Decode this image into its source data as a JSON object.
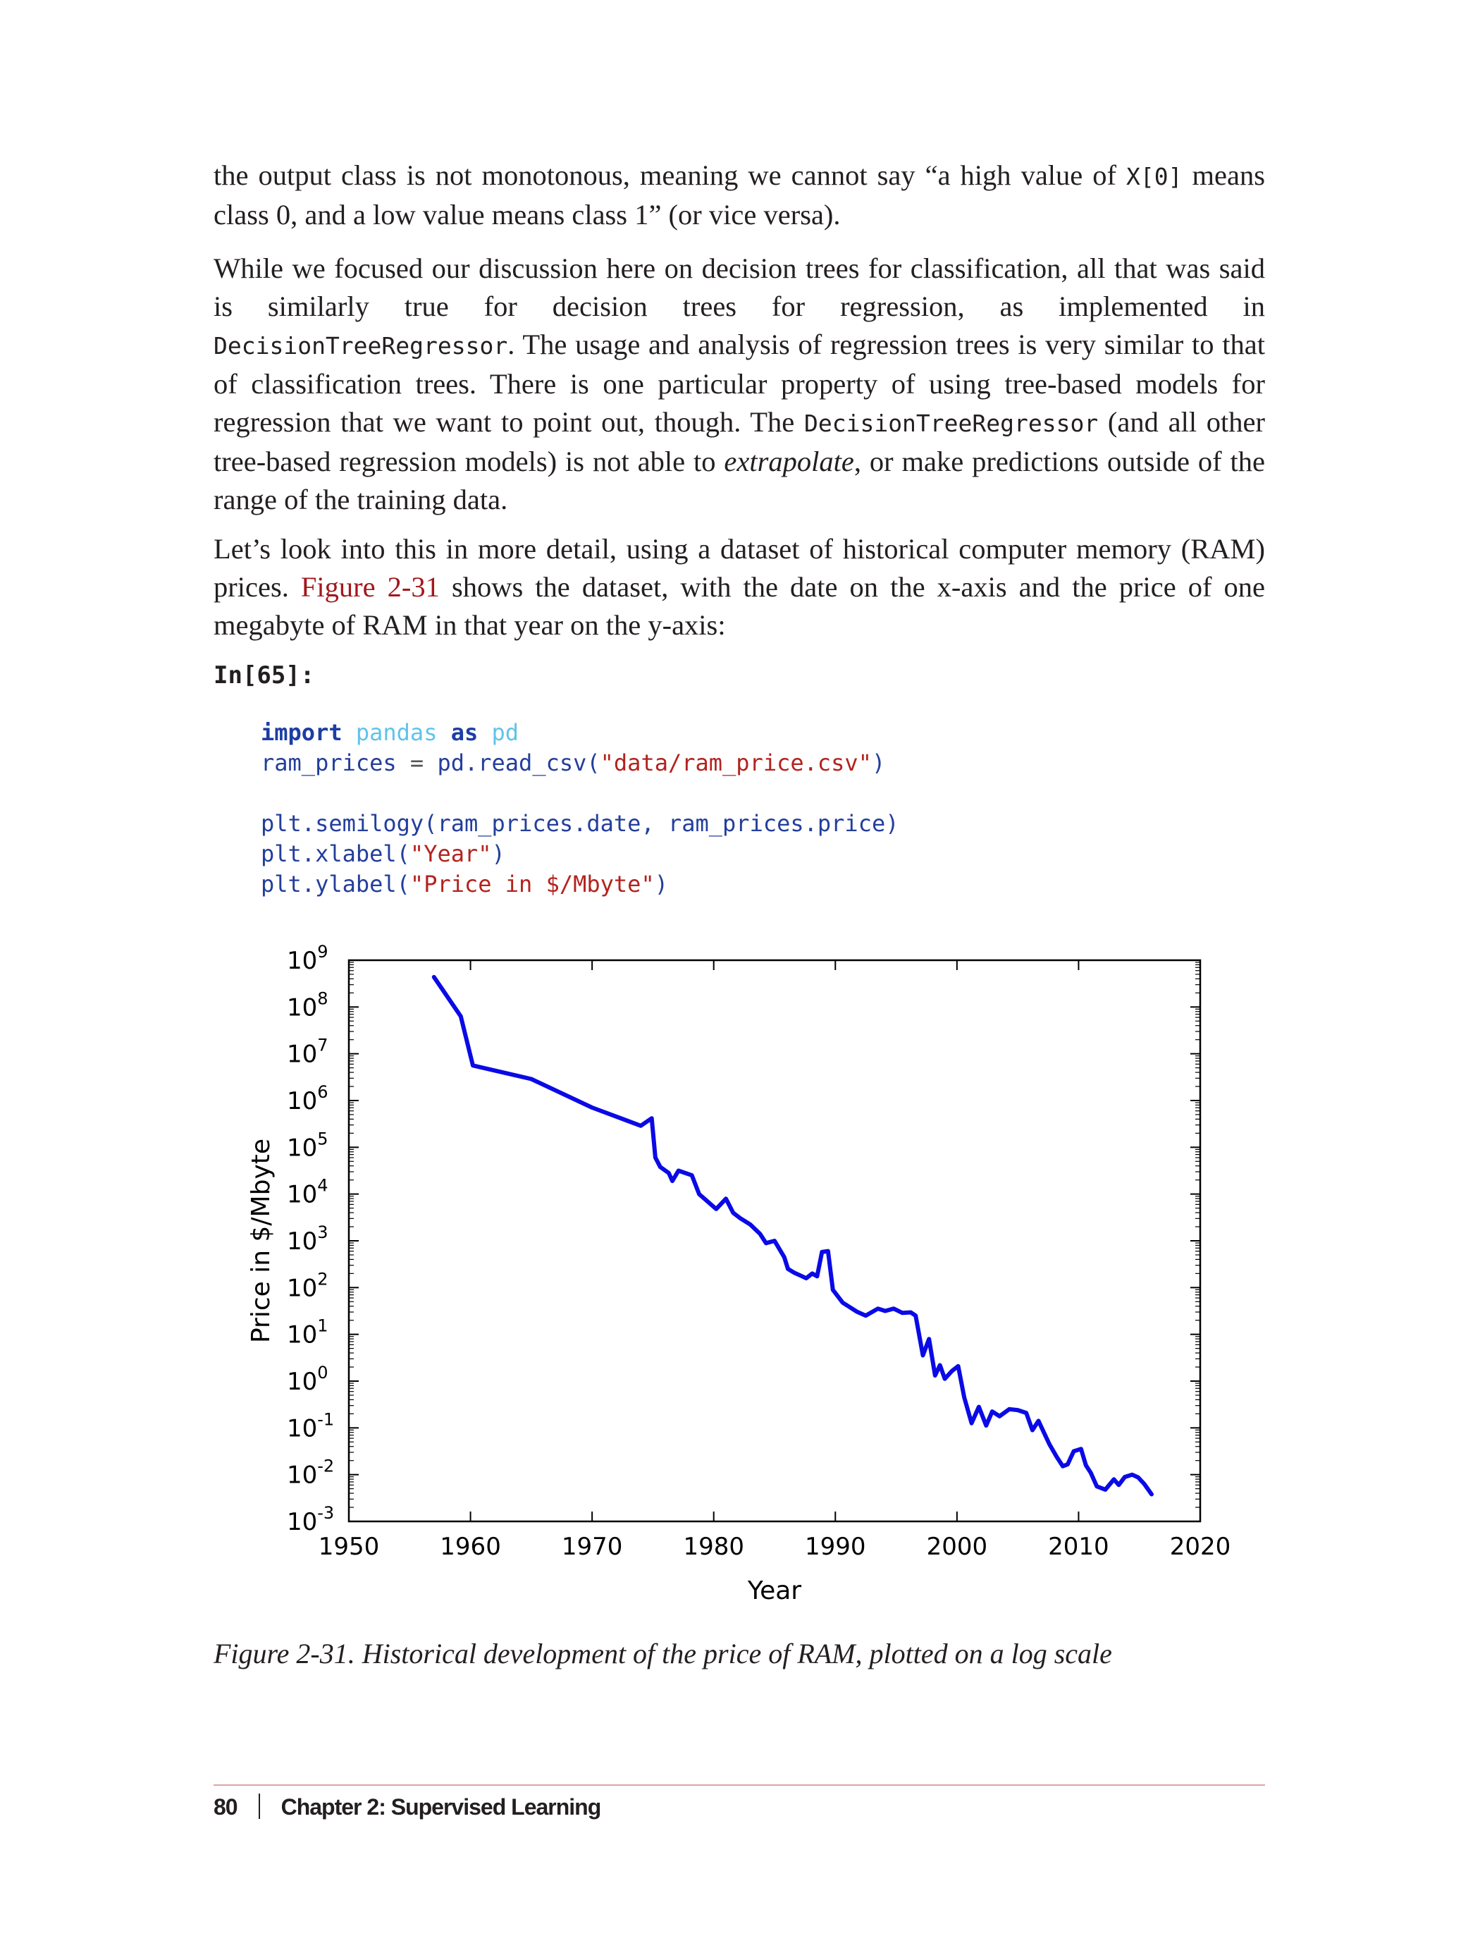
{
  "paragraphs": {
    "p1": {
      "a": "the output class is not monotonous, meaning we cannot say “a high value of ",
      "code": "X[0]",
      "b": " means class 0, and a low value means class 1” (or vice versa)."
    },
    "p2": {
      "a": "While we focused our discussion here on decision trees for classification, all that was said is similarly true for decision trees for regression, as implemented in ",
      "code1": "DecisionTreeRegressor",
      "b": ". The usage and analysis of regression trees is very similar to that of classification trees. There is one particular property of using tree-based models for regression that we want to point out, though. The ",
      "code2": "DecisionTreeRegressor",
      "c": " (and all other tree-based regression models) is not able to ",
      "em": "extrapolate",
      "d": ", or make predictions outside of the range of the training data."
    },
    "p3": {
      "a": "Let’s look into this in more detail, using a dataset of historical computer memory (RAM) prices. ",
      "ref": "Figure 2-31",
      "b": " shows the dataset, with the date on the x-axis and the price of one megabyte of RAM in that year on the y-axis:"
    }
  },
  "code_cell": {
    "label": "In[65]:",
    "l1_kw1": "import",
    "l1_mod1": "pandas",
    "l1_kw2": "as",
    "l1_mod2": "pd",
    "l2_a": "ram_prices",
    "l2_op": " = ",
    "l2_b": "pd.read_csv(",
    "l2_str": "\"data/ram_price.csv\"",
    "l2_c": ")",
    "l3": "plt.semilogy(ram_prices.date, ram_prices.price)",
    "l4_a": "plt.xlabel(",
    "l4_str": "\"Year\"",
    "l4_c": ")",
    "l5_a": "plt.ylabel(",
    "l5_str": "\"Price in $/Mbyte\"",
    "l5_c": ")"
  },
  "caption": "Figure 2-31. Historical development of the price of RAM, plotted on a log scale",
  "footer": {
    "page_number": "80",
    "chapter": "Chapter 2: Supervised Learning"
  },
  "chart_data": {
    "type": "line",
    "xlabel": "Year",
    "ylabel": "Price in $/Mbyte",
    "yscale": "log",
    "xlim": [
      1950,
      2020
    ],
    "ylim_exponents": [
      -3,
      9
    ],
    "xticks": [
      "1950",
      "1960",
      "1970",
      "1980",
      "1990",
      "2000",
      "2010",
      "2020"
    ],
    "yticks": [
      {
        "base": "10",
        "exp": "-3"
      },
      {
        "base": "10",
        "exp": "-2"
      },
      {
        "base": "10",
        "exp": "-1"
      },
      {
        "base": "10",
        "exp": "0"
      },
      {
        "base": "10",
        "exp": "1"
      },
      {
        "base": "10",
        "exp": "2"
      },
      {
        "base": "10",
        "exp": "3"
      },
      {
        "base": "10",
        "exp": "4"
      },
      {
        "base": "10",
        "exp": "5"
      },
      {
        "base": "10",
        "exp": "6"
      },
      {
        "base": "10",
        "exp": "7"
      },
      {
        "base": "10",
        "exp": "8"
      },
      {
        "base": "10",
        "exp": "9"
      }
    ],
    "grid": false,
    "line_color": "#0a0ae6",
    "series": [
      {
        "x": [
          1957,
          1959.2,
          1960.2,
          1965,
          1970,
          1974,
          1974.9,
          1975.2,
          1975.6,
          1976.3,
          1976.6,
          1977.1,
          1978.2,
          1978.8,
          1980.2,
          1981,
          1981.6,
          1982.2,
          1983,
          1983.8,
          1984.3,
          1985,
          1985.8,
          1986.1,
          1986.6,
          1987.2,
          1987.6,
          1988.1,
          1988.5,
          1988.9,
          1989.4,
          1989.8,
          1990.6,
          1991.8,
          1992.5,
          1993.5,
          1994.1,
          1994.8,
          1995.5,
          1996.2,
          1996.6,
          1997.2,
          1997.7,
          1998.2,
          1998.6,
          1999.0,
          1999.6,
          2000.1,
          2000.6,
          2001.2,
          2001.8,
          2002.4,
          2002.9,
          2003.5,
          2004.3,
          2005.0,
          2005.7,
          2006.2,
          2006.7,
          2007.6,
          2008.2,
          2008.7,
          2009.1,
          2009.6,
          2010.2,
          2010.6,
          2011.0,
          2011.5,
          2012.2,
          2012.9,
          2013.3,
          2013.8,
          2014.4,
          2014.9,
          2015.4,
          2016
        ],
        "y_exp": [
          8.64,
          7.8,
          6.75,
          6.46,
          5.85,
          5.46,
          5.62,
          4.78,
          4.58,
          4.45,
          4.28,
          4.5,
          4.4,
          4.0,
          3.68,
          3.9,
          3.6,
          3.48,
          3.35,
          3.15,
          2.95,
          3.0,
          2.65,
          2.4,
          2.32,
          2.25,
          2.2,
          2.3,
          2.24,
          2.76,
          2.78,
          1.95,
          1.68,
          1.48,
          1.4,
          1.55,
          1.5,
          1.55,
          1.46,
          1.47,
          1.4,
          0.55,
          0.9,
          0.12,
          0.34,
          0.05,
          0.22,
          0.32,
          -0.35,
          -0.9,
          -0.55,
          -0.95,
          -0.65,
          -0.75,
          -0.6,
          -0.62,
          -0.68,
          -1.05,
          -0.85,
          -1.35,
          -1.62,
          -1.82,
          -1.78,
          -1.5,
          -1.45,
          -1.8,
          -1.96,
          -2.25,
          -2.32,
          -2.1,
          -2.22,
          -2.05,
          -2.0,
          -2.06,
          -2.2,
          -2.42
        ]
      }
    ]
  }
}
